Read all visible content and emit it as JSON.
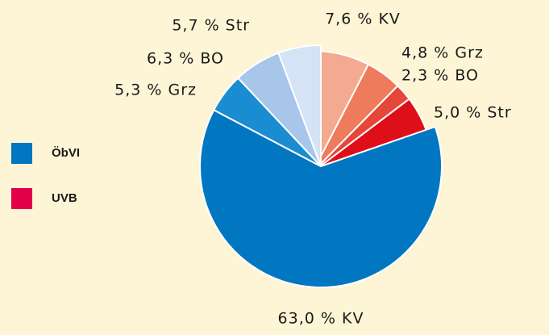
{
  "chart_data": {
    "type": "pie",
    "series": [
      {
        "name": "ÖbVI",
        "color": "#0077c0",
        "values": [
          63.0,
          5.3,
          6.3,
          5.7
        ],
        "value_labels": [
          "63,0 % KV",
          "5,3 % Grz",
          "6,3 % BO",
          "5,7 % Str"
        ],
        "colors": [
          "#0077c0",
          "#1a8dd2",
          "#a7c6ea",
          "#d4e3f5"
        ]
      },
      {
        "name": "UVB",
        "color": "#e2004a",
        "values": [
          7.6,
          4.8,
          2.3,
          5.0
        ],
        "value_labels": [
          "7,6 % KV",
          "4,8 % Grz",
          "2,3 % BO",
          "5,0 % Str"
        ],
        "colors": [
          "#f3aa90",
          "#ee7b5b",
          "#e6463a",
          "#df0f19"
        ]
      }
    ]
  }
}
